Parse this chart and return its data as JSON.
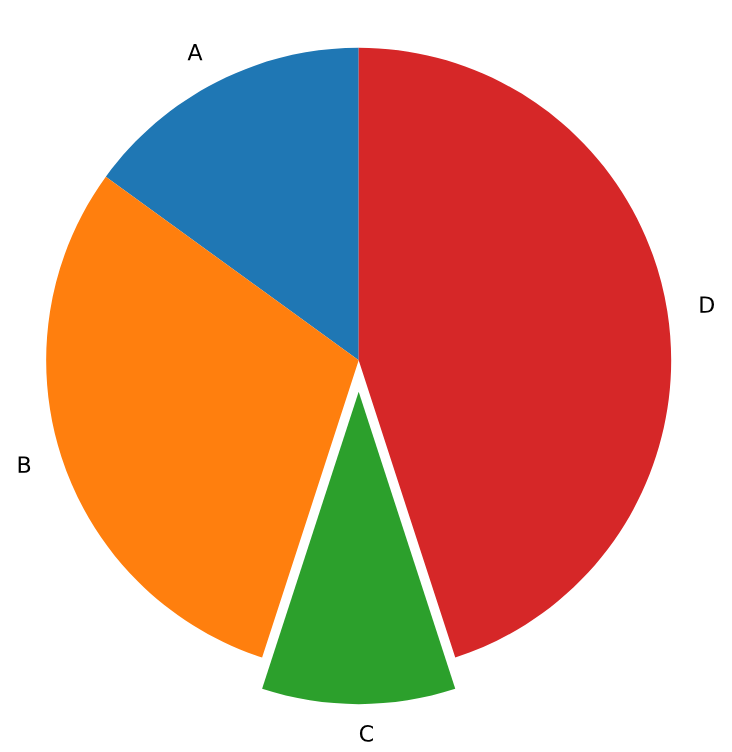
{
  "chart_data": {
    "type": "pie",
    "categories": [
      "A",
      "B",
      "C",
      "D"
    ],
    "values": [
      15,
      30,
      10,
      45
    ],
    "colors": [
      "#1f77b4",
      "#ff7f0e",
      "#2ca02c",
      "#d62728"
    ]
  }
}
